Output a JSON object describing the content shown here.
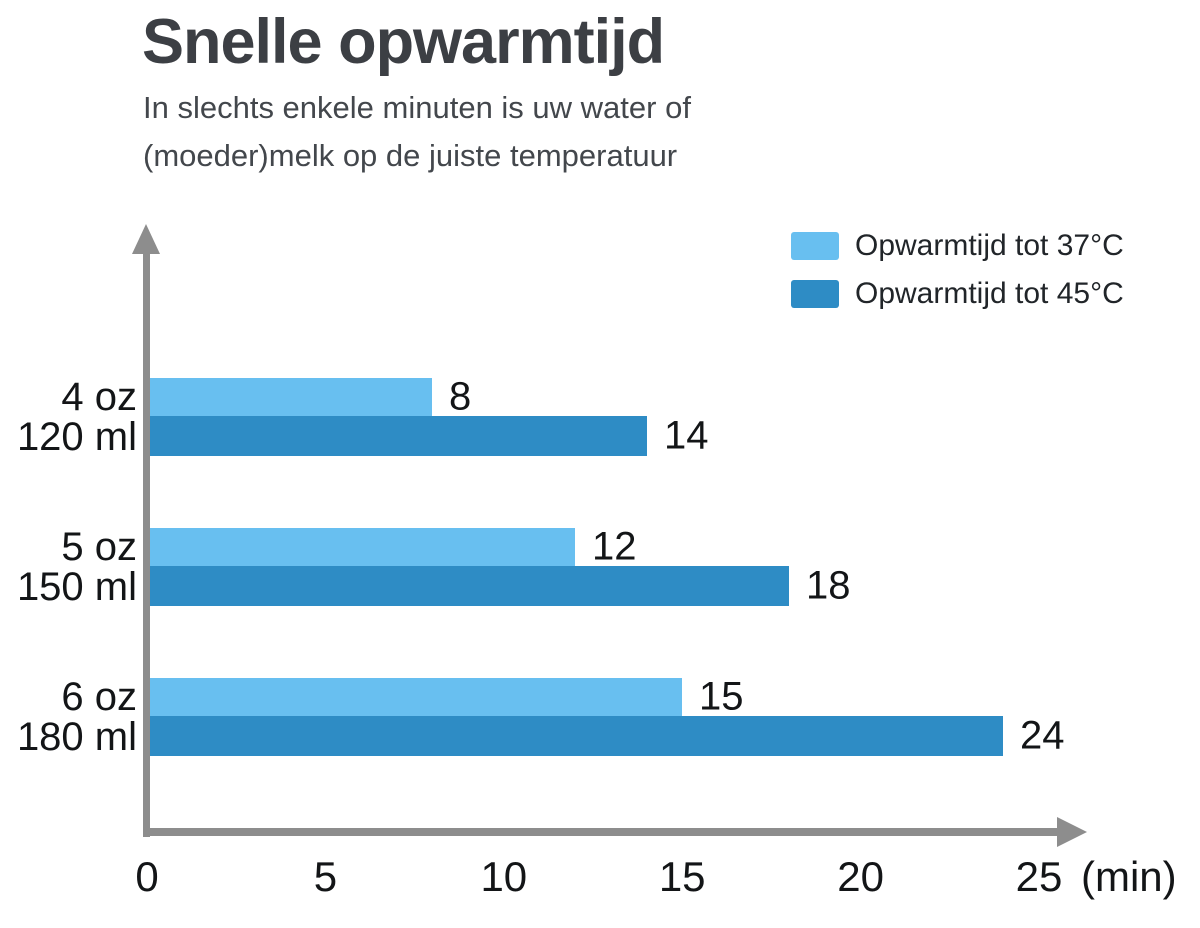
{
  "chart_data": {
    "type": "bar",
    "orientation": "horizontal",
    "title": "Snelle opwarmtijd",
    "subtitle_line1": "In slechts enkele minuten is uw water of",
    "subtitle_line2": "(moeder)melk op de juiste temperatuur",
    "categories": [
      {
        "line1": "4 oz",
        "line2": "120 ml"
      },
      {
        "line1": "5 oz",
        "line2": "150 ml"
      },
      {
        "line1": "6 oz",
        "line2": "180 ml"
      }
    ],
    "series": [
      {
        "name": "Opwarmtijd tot 37°C",
        "color": "#68bff0",
        "values": [
          8,
          12,
          15
        ]
      },
      {
        "name": "Opwarmtijd tot 45°C",
        "color": "#2e8cc5",
        "values": [
          14,
          18,
          24
        ]
      }
    ],
    "x_ticks": [
      0,
      5,
      10,
      15,
      20,
      25
    ],
    "x_unit_label": "(min)",
    "xlim": [
      0,
      25
    ],
    "grid": false,
    "legend_position": "top-right",
    "axis_color": "#8d8d8d",
    "text_color": "#131517",
    "title_color": "#3c3f44",
    "subtitle_color": "#43474c"
  }
}
